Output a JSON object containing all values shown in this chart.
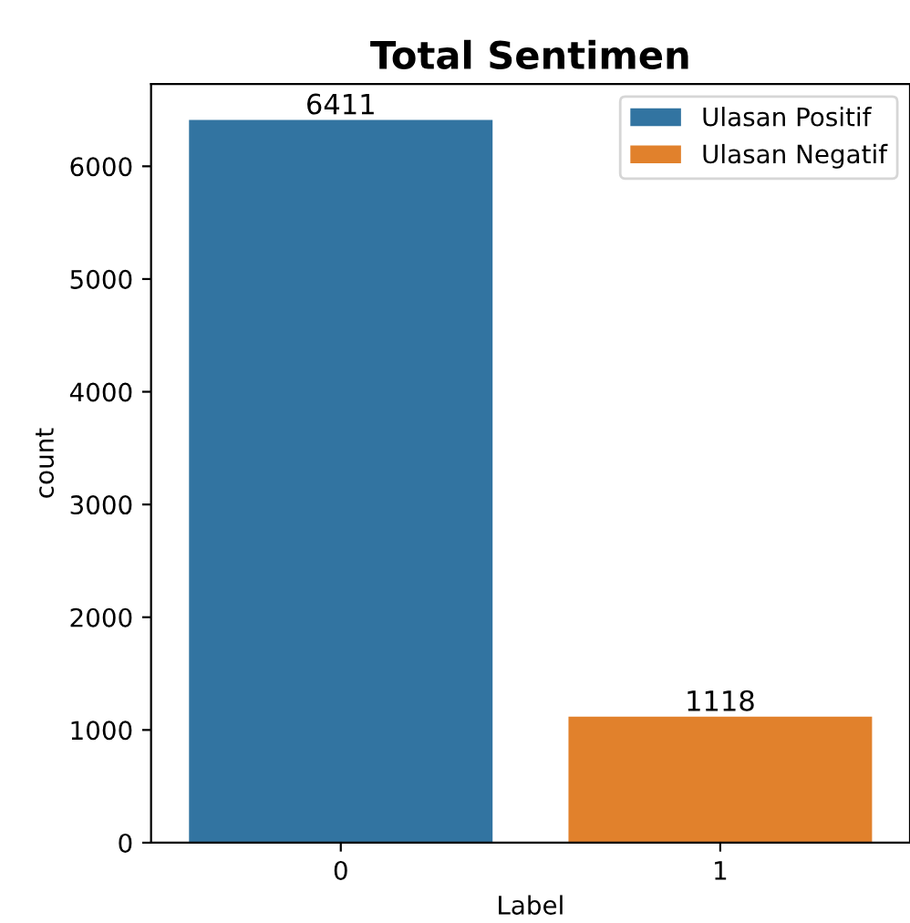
{
  "chart_data": {
    "type": "bar",
    "title": "Total Sentimen",
    "xlabel": "Label",
    "ylabel": "count",
    "categories": [
      "0",
      "1"
    ],
    "series": [
      {
        "name": "Ulasan Positif",
        "color": "#3274a1",
        "values": [
          6411,
          null
        ]
      },
      {
        "name": "Ulasan Negatif",
        "color": "#e1812c",
        "values": [
          null,
          1118
        ]
      }
    ],
    "stacked": true,
    "data_labels": true,
    "ylim": [
      0,
      6730
    ],
    "yticks": [
      0,
      1000,
      2000,
      3000,
      4000,
      5000,
      6000
    ],
    "grid": false,
    "legend": "top right"
  }
}
